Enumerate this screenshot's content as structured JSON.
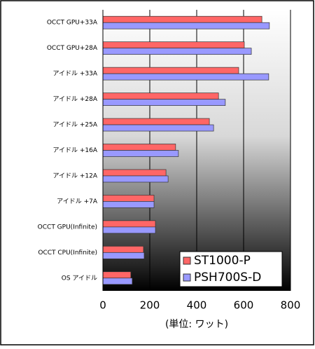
{
  "chart_data": {
    "type": "bar",
    "orientation": "horizontal",
    "x_label": "(単位: ワット)",
    "categories": [
      "OCCT GPU+33A",
      "OCCT GPU+28A",
      "アイドル +33A",
      "アイドル +28A",
      "アイドル +25A",
      "アイドル +16A",
      "アイドル +12A",
      "アイドル +7A",
      "OCCT GPU(Infinite)",
      "OCCT CPU(Infinite)",
      "OS アイドル"
    ],
    "series": [
      {
        "name": "ST1000-P",
        "color": "#ff6666",
        "values": [
          678,
          603,
          579,
          493,
          454,
          310,
          269,
          218,
          224,
          173,
          119
        ]
      },
      {
        "name": "PSH700S-D",
        "color": "#9999ff",
        "values": [
          710,
          633,
          707,
          522,
          472,
          322,
          278,
          218,
          224,
          176,
          125
        ]
      }
    ],
    "xlim": [
      0,
      800
    ],
    "xticks": [
      0,
      200,
      400,
      600,
      800
    ],
    "grid": true,
    "legend": "lower right"
  }
}
